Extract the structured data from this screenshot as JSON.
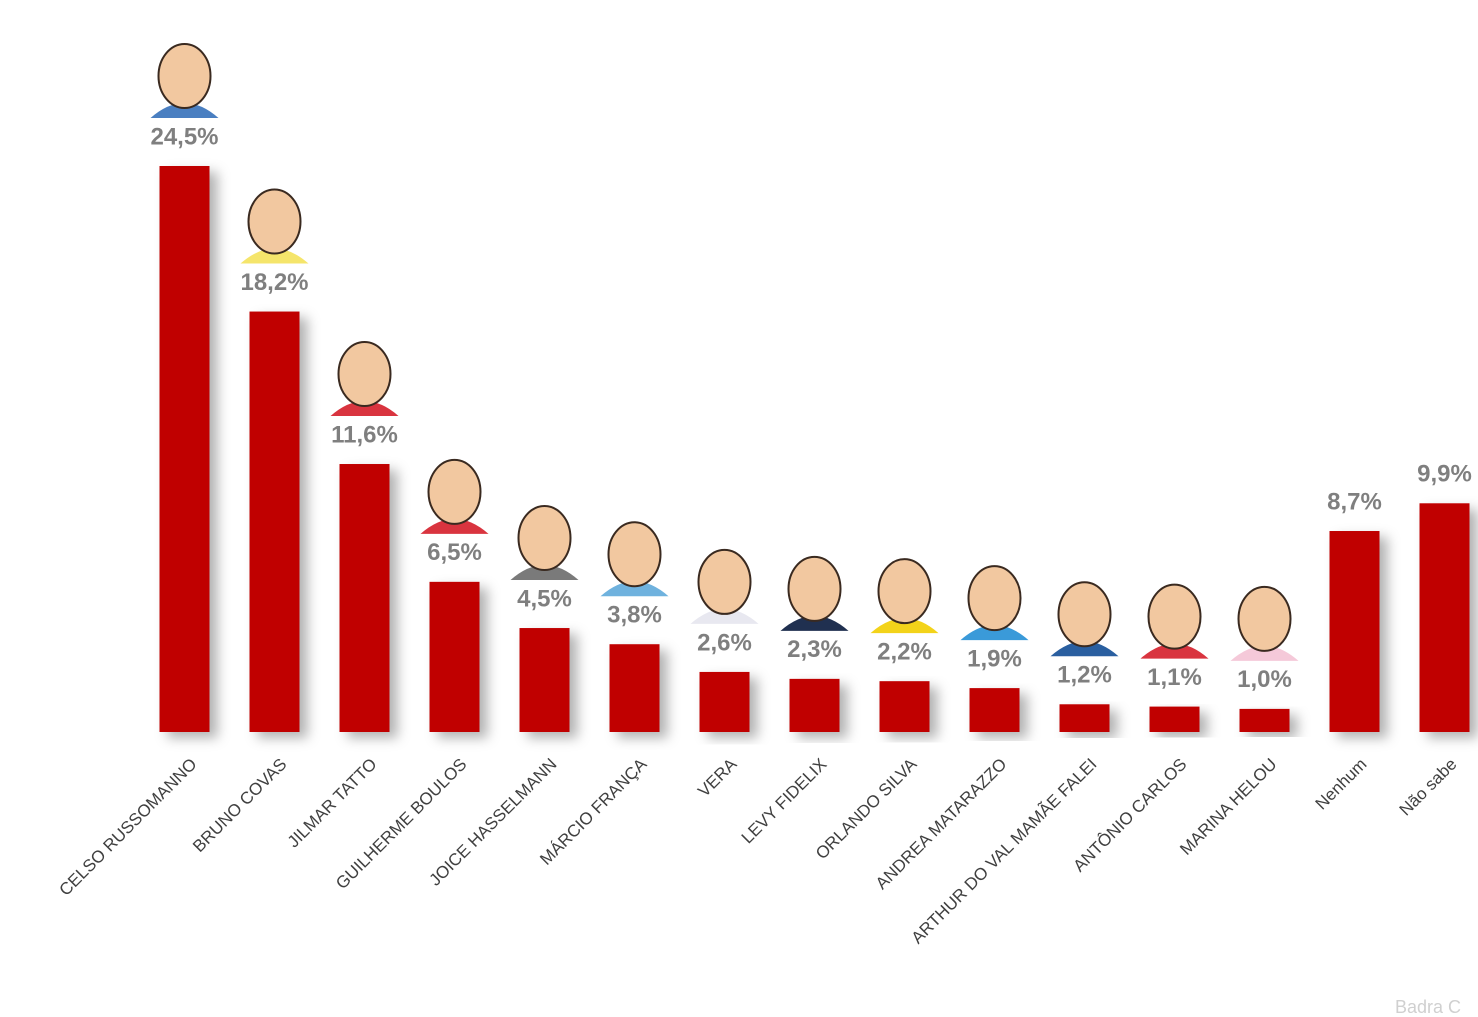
{
  "chart_data": {
    "type": "bar",
    "categories": [
      "CELSO RUSSOMANNO",
      "BRUNO COVAS",
      "JILMAR TATTO",
      "GUILHERME BOULOS",
      "JOICE HASSELMANN",
      "MÁRCIO FRANÇA",
      "VERA",
      "LEVY FIDELIX",
      "ORLANDO SILVA",
      "ANDREA MATARAZZO",
      "ARTHUR DO VAL MAMÃE FALEI",
      "ANTÔNIO CARLOS",
      "MARINA HELOU",
      "Nenhum",
      "Não sabe"
    ],
    "values": [
      24.5,
      18.2,
      11.6,
      6.5,
      4.5,
      3.8,
      2.6,
      2.3,
      2.2,
      1.9,
      1.2,
      1.1,
      1.0,
      8.7,
      9.9
    ],
    "value_labels": [
      "24,5%",
      "18,2%",
      "11,6%",
      "6,5%",
      "4,5%",
      "3,8%",
      "2,6%",
      "2,3%",
      "2,2%",
      "1,9%",
      "1,2%",
      "1,1%",
      "1,0%",
      "8,7%",
      "9,9%"
    ],
    "color": "#c00000",
    "watermark": "Badra C"
  }
}
